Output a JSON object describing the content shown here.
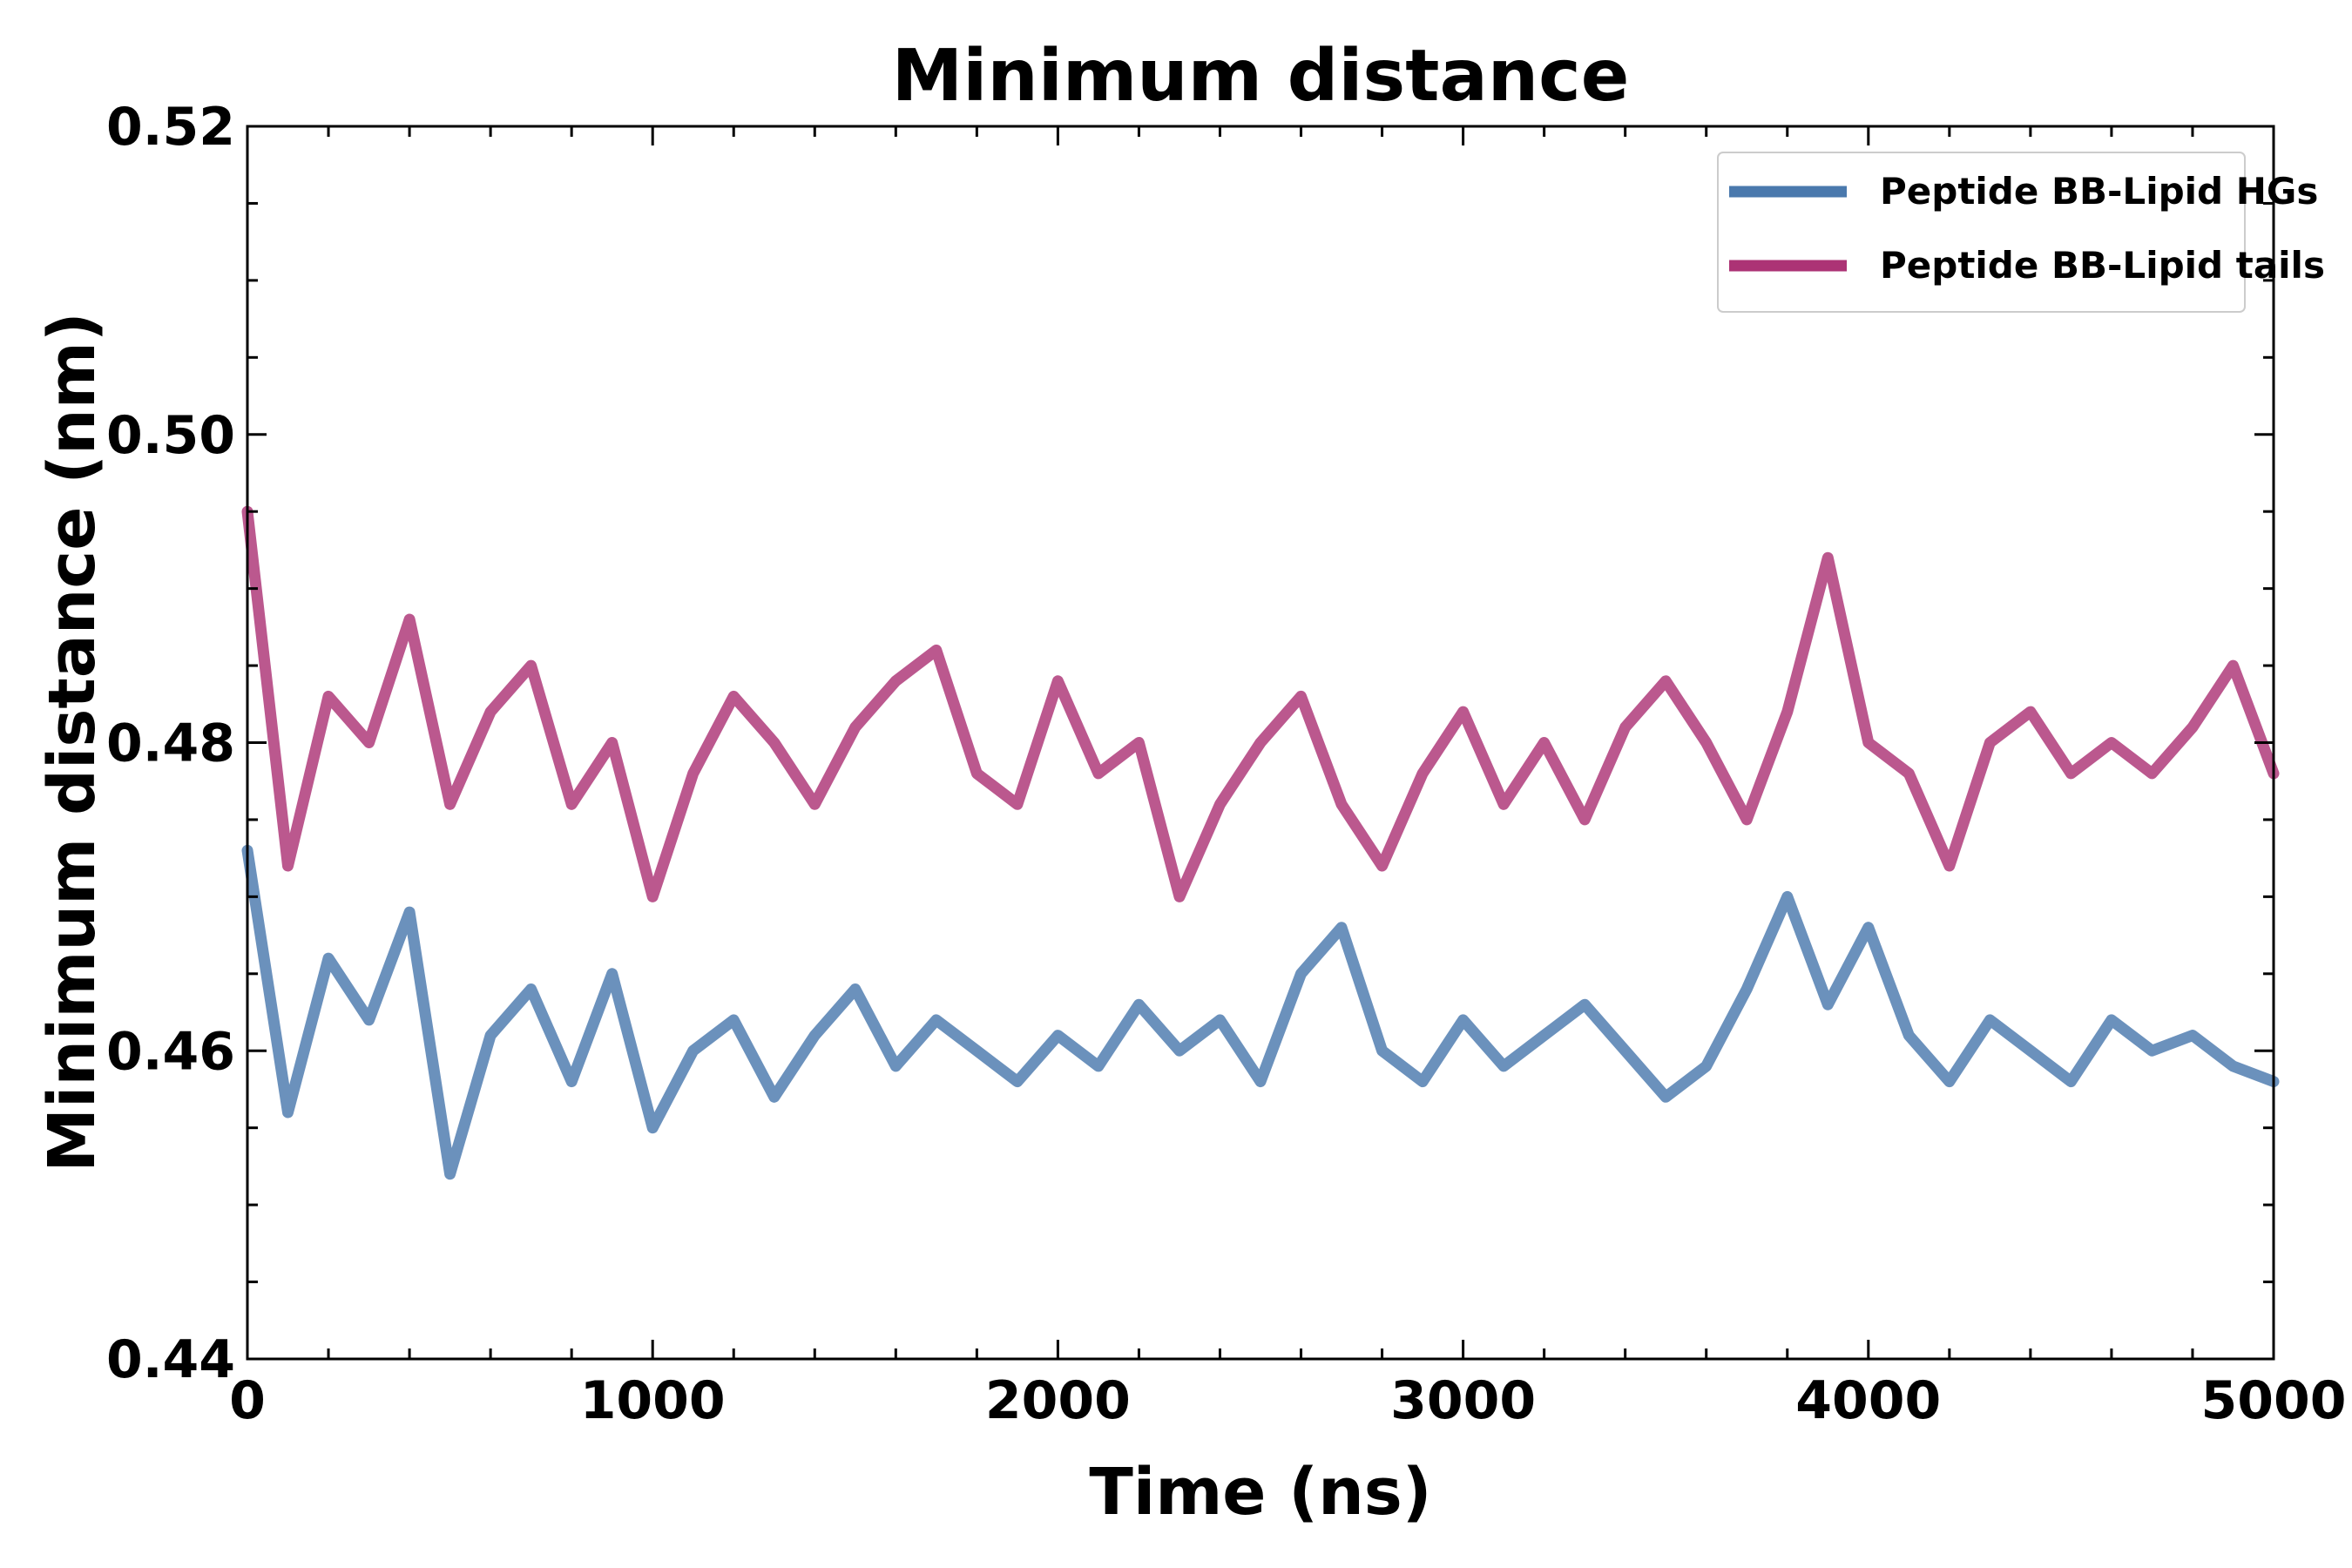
{
  "chart_data": {
    "type": "line",
    "title": "Minimum distance",
    "xlabel": "Time (ns)",
    "ylabel": "Minimum distance (nm)",
    "xlim": [
      0,
      5000
    ],
    "ylim": [
      0.44,
      0.52
    ],
    "xticks": [
      0,
      1000,
      2000,
      3000,
      4000,
      5000
    ],
    "xtick_labels": [
      "0",
      "1000",
      "2000",
      "3000",
      "4000",
      "5000"
    ],
    "yticks": [
      0.44,
      0.46,
      0.48,
      0.5,
      0.52
    ],
    "ytick_labels": [
      "0.44",
      "0.46",
      "0.48",
      "0.50",
      "0.52"
    ],
    "legend_position": "top-right",
    "grid": false,
    "x": [
      0,
      100,
      200,
      300,
      400,
      500,
      600,
      700,
      800,
      900,
      1000,
      1100,
      1200,
      1300,
      1400,
      1500,
      1600,
      1700,
      1800,
      1900,
      2000,
      2100,
      2200,
      2300,
      2400,
      2500,
      2600,
      2700,
      2800,
      2900,
      3000,
      3100,
      3200,
      3300,
      3400,
      3500,
      3600,
      3700,
      3800,
      3900,
      4000,
      4100,
      4200,
      4300,
      4400,
      4500,
      4600,
      4700,
      4800,
      4900,
      5000
    ],
    "series": [
      {
        "name": "Peptide BB-Lipid HGs",
        "color": "#4a79ad",
        "values": [
          0.473,
          0.456,
          0.466,
          0.462,
          0.469,
          0.452,
          0.461,
          0.464,
          0.458,
          0.465,
          0.455,
          0.46,
          0.462,
          0.457,
          0.461,
          0.464,
          0.459,
          0.462,
          0.46,
          0.458,
          0.461,
          0.459,
          0.463,
          0.46,
          0.462,
          0.458,
          0.465,
          0.468,
          0.46,
          0.458,
          0.462,
          0.459,
          0.461,
          0.463,
          0.46,
          0.457,
          0.459,
          0.464,
          0.47,
          0.463,
          0.468,
          0.461,
          0.458,
          0.462,
          0.46,
          0.458,
          0.462,
          0.46,
          0.461,
          0.459,
          0.458
        ]
      },
      {
        "name": "Peptide BB-Lipid tails",
        "color": "#ac3375",
        "values": [
          0.495,
          0.472,
          0.483,
          0.48,
          0.488,
          0.476,
          0.482,
          0.485,
          0.476,
          0.48,
          0.47,
          0.478,
          0.483,
          0.48,
          0.476,
          0.481,
          0.484,
          0.486,
          0.478,
          0.476,
          0.484,
          0.478,
          0.48,
          0.47,
          0.476,
          0.48,
          0.483,
          0.476,
          0.472,
          0.478,
          0.482,
          0.476,
          0.48,
          0.475,
          0.481,
          0.484,
          0.48,
          0.475,
          0.482,
          0.492,
          0.48,
          0.478,
          0.472,
          0.48,
          0.482,
          0.478,
          0.48,
          0.478,
          0.481,
          0.485,
          0.478
        ]
      }
    ]
  }
}
